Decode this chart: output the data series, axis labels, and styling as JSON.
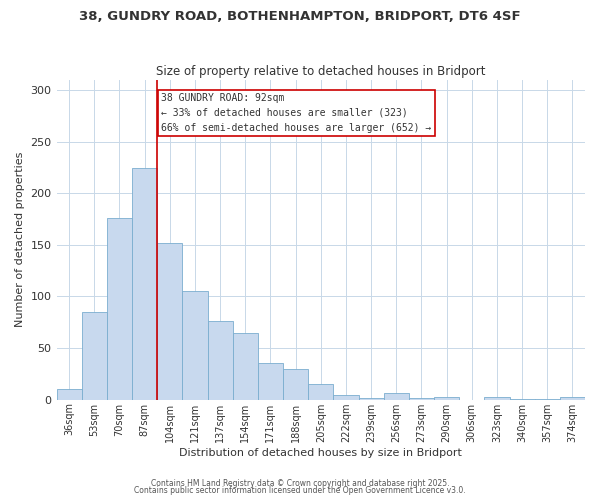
{
  "title": "38, GUNDRY ROAD, BOTHENHAMPTON, BRIDPORT, DT6 4SF",
  "subtitle": "Size of property relative to detached houses in Bridport",
  "xlabel": "Distribution of detached houses by size in Bridport",
  "ylabel": "Number of detached properties",
  "bar_labels": [
    "36sqm",
    "53sqm",
    "70sqm",
    "87sqm",
    "104sqm",
    "121sqm",
    "137sqm",
    "154sqm",
    "171sqm",
    "188sqm",
    "205sqm",
    "222sqm",
    "239sqm",
    "256sqm",
    "273sqm",
    "290sqm",
    "306sqm",
    "323sqm",
    "340sqm",
    "357sqm",
    "374sqm"
  ],
  "bar_values": [
    10,
    85,
    176,
    224,
    152,
    105,
    76,
    65,
    36,
    30,
    15,
    5,
    2,
    6,
    2,
    3,
    0,
    3,
    1,
    1,
    3
  ],
  "bar_color": "#c8d9ee",
  "bar_edge_color": "#7aadcf",
  "ylim": [
    0,
    310
  ],
  "yticks": [
    0,
    50,
    100,
    150,
    200,
    250,
    300
  ],
  "vline_color": "#cc0000",
  "annotation_title": "38 GUNDRY ROAD: 92sqm",
  "annotation_line1": "← 33% of detached houses are smaller (323)",
  "annotation_line2": "66% of semi-detached houses are larger (652) →",
  "footer1": "Contains HM Land Registry data © Crown copyright and database right 2025.",
  "footer2": "Contains public sector information licensed under the Open Government Licence v3.0.",
  "background_color": "#ffffff",
  "grid_color": "#c8d8e8",
  "title_fontsize": 9.5,
  "subtitle_fontsize": 8.5,
  "axis_label_fontsize": 8,
  "tick_fontsize": 7,
  "annotation_fontsize": 7,
  "footer_fontsize": 5.5
}
